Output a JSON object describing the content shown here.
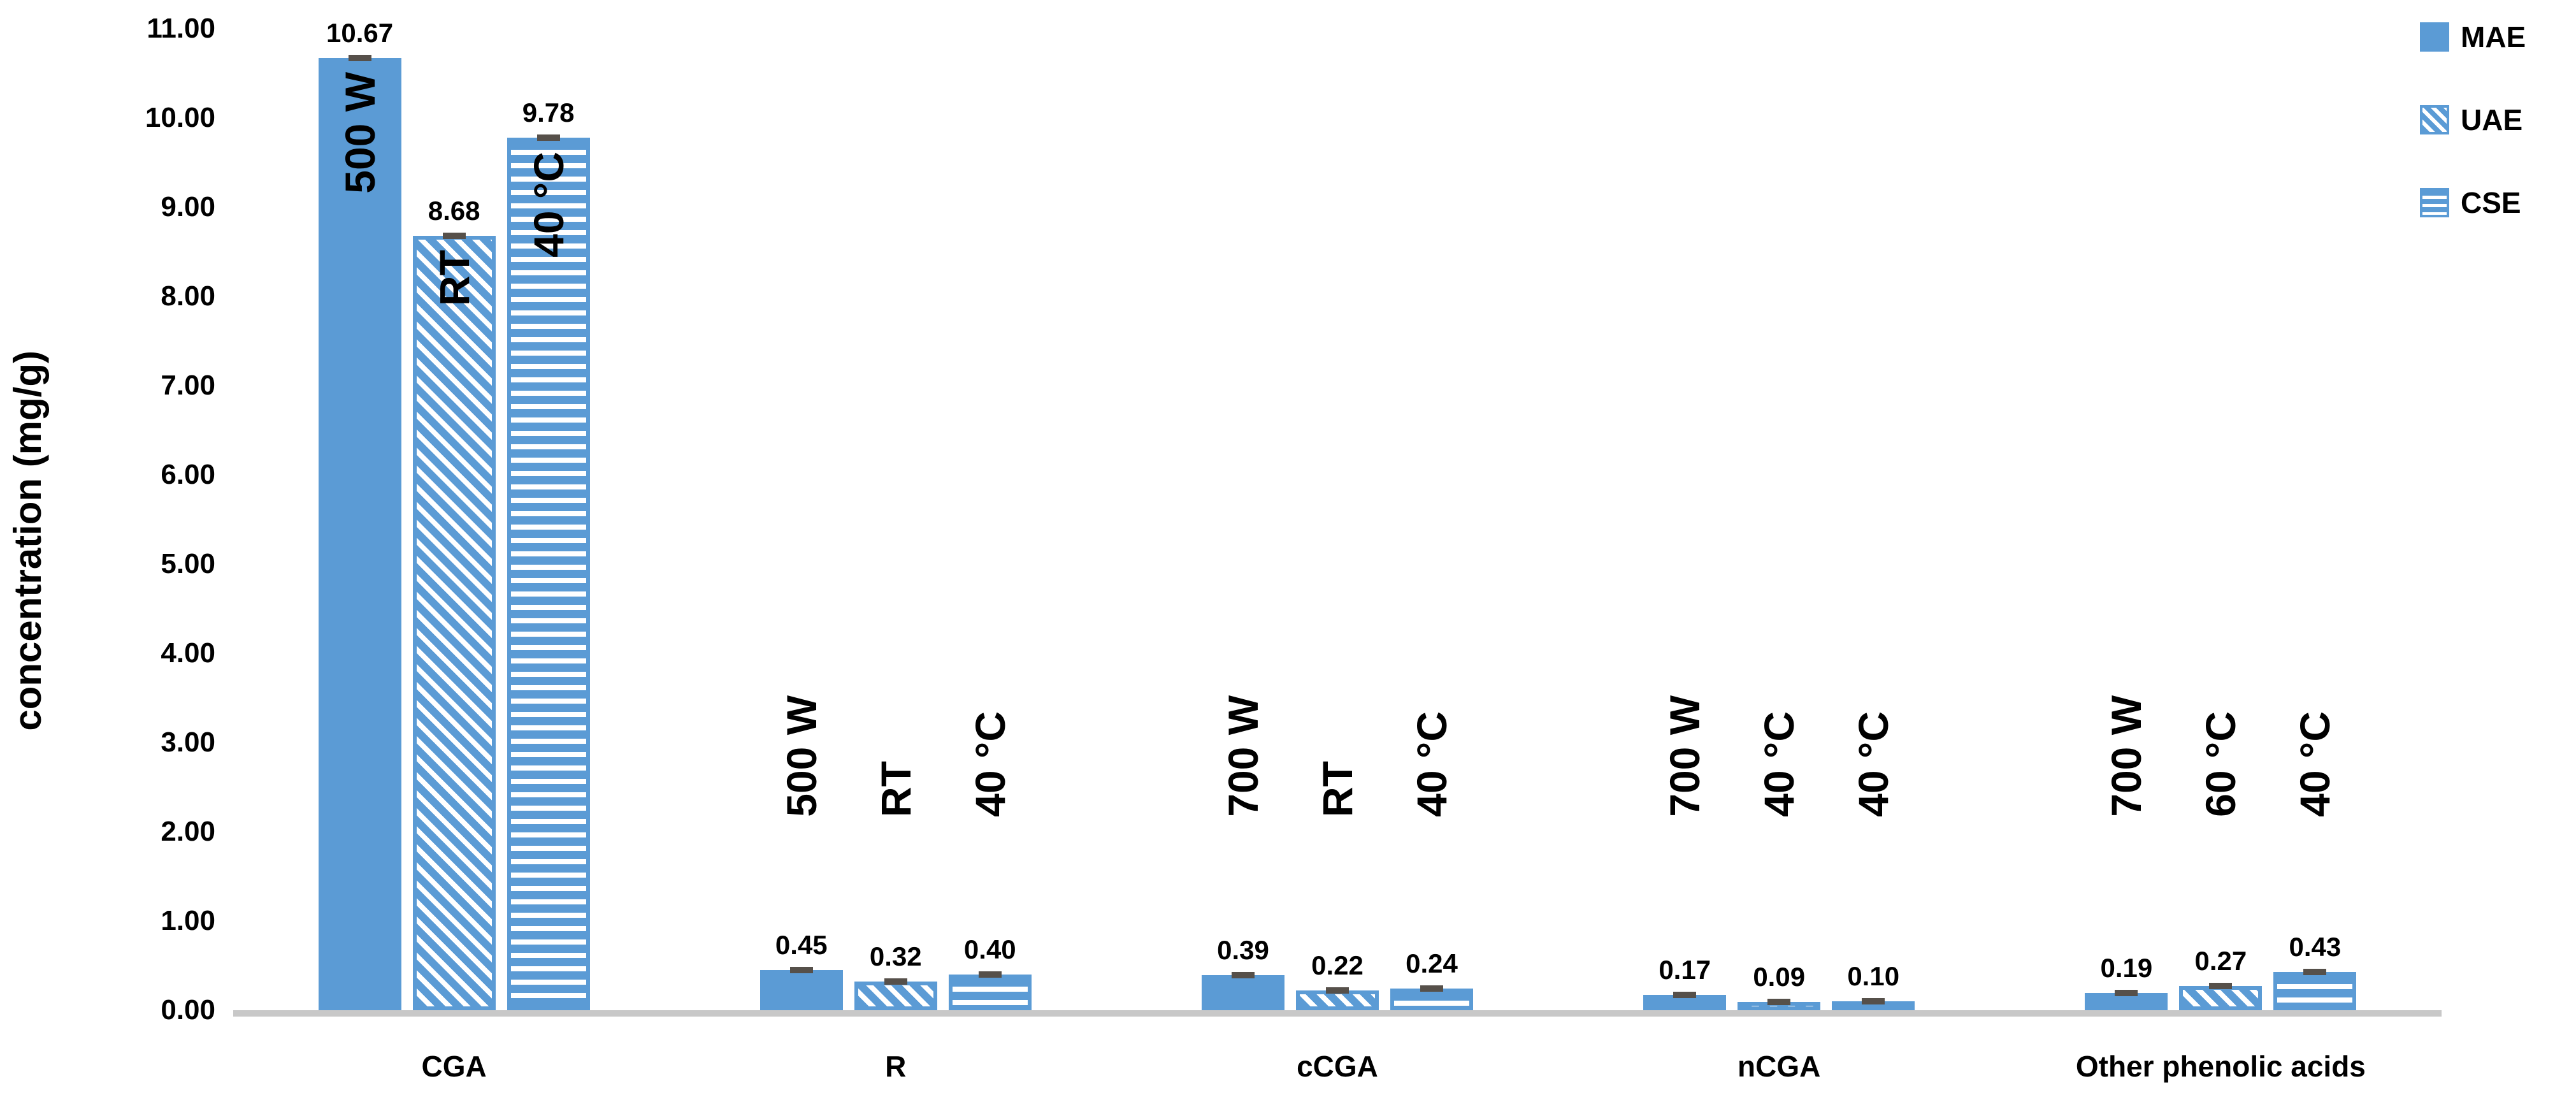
{
  "figure": {
    "background": "#ffffff"
  },
  "chart_data": {
    "type": "bar",
    "title": "",
    "xlabel": "",
    "ylabel": "concentration (mg/g)",
    "ylim": [
      0,
      11
    ],
    "ytick_step": 1.0,
    "ytick_labels": [
      "0.00",
      "1.00",
      "2.00",
      "3.00",
      "4.00",
      "5.00",
      "6.00",
      "7.00",
      "8.00",
      "9.00",
      "10.00",
      "11.00"
    ],
    "grid": false,
    "error_bars": true,
    "legend_position": "top-right",
    "categories": [
      "CGA",
      "R",
      "cCGA",
      "nCGA",
      "Other phenolic acids"
    ],
    "series": [
      {
        "name": "MAE",
        "pattern": "solid",
        "values": [
          10.67,
          0.45,
          0.39,
          0.17,
          0.19
        ],
        "value_labels": [
          "10.67",
          "0.45",
          "0.39",
          "0.17",
          "0.19"
        ],
        "bar_annotations": [
          "500 W",
          "500 W",
          "700 W",
          "700 W",
          "700 W"
        ]
      },
      {
        "name": "UAE",
        "pattern": "diagonal-hatch",
        "values": [
          8.68,
          0.32,
          0.22,
          0.09,
          0.27
        ],
        "value_labels": [
          "8.68",
          "0.32",
          "0.22",
          "0.09",
          "0.27"
        ],
        "bar_annotations": [
          "RT",
          "RT",
          "RT",
          "40 °C",
          "60 °C"
        ]
      },
      {
        "name": "CSE",
        "pattern": "horizontal-stripes",
        "values": [
          9.78,
          0.4,
          0.24,
          0.1,
          0.43
        ],
        "value_labels": [
          "9.78",
          "0.40",
          "0.24",
          "0.10",
          "0.43"
        ],
        "bar_annotations": [
          "40 °C",
          "40 °C",
          "40 °C",
          "40 °C",
          "40 °C"
        ]
      }
    ],
    "colors": {
      "bar_blue": "#5B9BD5",
      "pattern_white": "#FFFFFF",
      "error_cap": "#56504A",
      "axis_line": "#C8C8C8",
      "text": "#000000"
    }
  }
}
